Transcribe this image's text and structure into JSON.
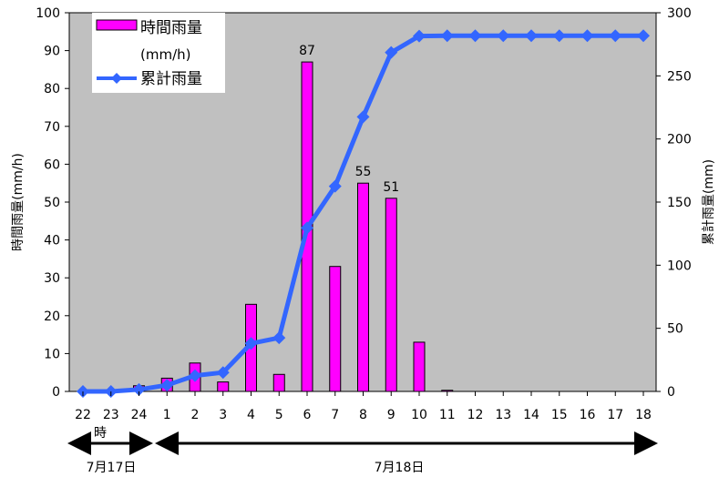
{
  "chart_data": {
    "type": "bar",
    "categories": [
      "22",
      "23",
      "24",
      "1",
      "2",
      "3",
      "4",
      "5",
      "6",
      "7",
      "8",
      "9",
      "10",
      "11",
      "12",
      "13",
      "14",
      "15",
      "16",
      "17",
      "18"
    ],
    "series": [
      {
        "name": "時間雨量",
        "name_unit": "(mm/h)",
        "type": "bar",
        "axis": "left",
        "color": "#ff00ff",
        "values": [
          0,
          0,
          1.5,
          3.5,
          7.5,
          2.5,
          23,
          4.5,
          87,
          33,
          55,
          51,
          13,
          0.3,
          0,
          0,
          0,
          0,
          0,
          0,
          0
        ]
      },
      {
        "name": "累計雨量",
        "type": "line",
        "axis": "right",
        "color": "#3366ff",
        "values": [
          0,
          0,
          1.5,
          5,
          12.5,
          15,
          38,
          42.5,
          129.5,
          162.5,
          217.5,
          268.5,
          281.5,
          281.8,
          281.8,
          281.8,
          281.8,
          281.8,
          281.8,
          281.8,
          281.8
        ]
      }
    ],
    "data_labels": [
      {
        "category": "6",
        "text": "87"
      },
      {
        "category": "8",
        "text": "55"
      },
      {
        "category": "9",
        "text": "51"
      }
    ],
    "ylabel": "時間雨量(mm/h)",
    "ylabel_right": "累計雨量(mm)",
    "ylim": [
      0,
      100
    ],
    "ylim_right": [
      0,
      300
    ],
    "yticks": [
      "0",
      "10",
      "20",
      "30",
      "40",
      "50",
      "60",
      "70",
      "80",
      "90",
      "100"
    ],
    "yticks_right": [
      "0",
      "50",
      "100",
      "150",
      "200",
      "250",
      "300"
    ],
    "legend_position": "top-left",
    "plot_background": "#c0c0c0",
    "grid": false
  },
  "annotations": {
    "hour_label": "時",
    "date1": "7月17日",
    "date2": "7月18日"
  }
}
